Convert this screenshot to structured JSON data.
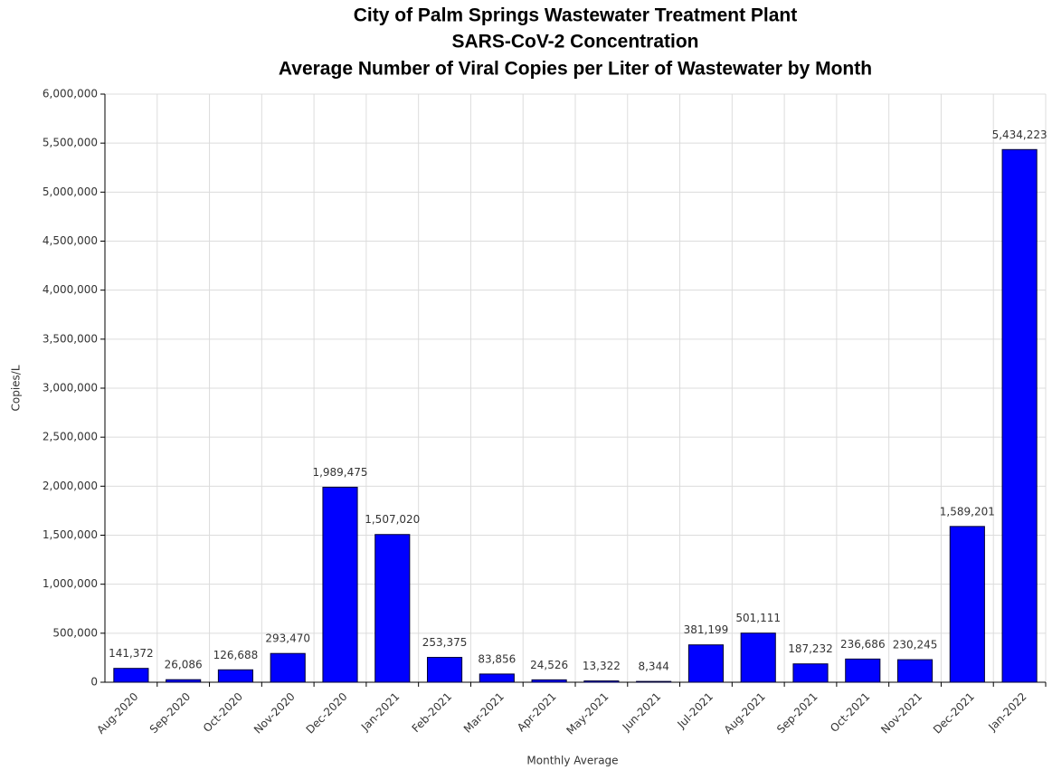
{
  "chart_data": {
    "type": "bar",
    "title": [
      "City of Palm Springs Wastewater Treatment Plant",
      "SARS-CoV-2 Concentration",
      "Average Number of Viral Copies per Liter of Wastewater by Month"
    ],
    "x_label": "Monthly Average",
    "y_label": "Copies/L",
    "categories": [
      "Aug-2020",
      "Sep-2020",
      "Oct-2020",
      "Nov-2020",
      "Dec-2020",
      "Jan-2021",
      "Feb-2021",
      "Mar-2021",
      "Apr-2021",
      "May-2021",
      "Jun-2021",
      "Jul-2021",
      "Aug-2021",
      "Sep-2021",
      "Oct-2021",
      "Nov-2021",
      "Dec-2021",
      "Jan-2022"
    ],
    "values": [
      141372,
      26086,
      126688,
      293470,
      1989475,
      1507020,
      253375,
      83856,
      24526,
      13322,
      8344,
      381199,
      501111,
      187232,
      236686,
      230245,
      1589201,
      5434223
    ],
    "value_labels": [
      "141,372",
      "26,086",
      "126,688",
      "293,470",
      "1,989,475",
      "1,507,020",
      "253,375",
      "83,856",
      "24,526",
      "13,322",
      "8,344",
      "381,199",
      "501,111",
      "187,232",
      "236,686",
      "230,245",
      "1,589,201",
      "5,434,223"
    ],
    "color": "#0000ff",
    "ylim": [
      0,
      6000000
    ],
    "yticks": [
      0,
      {
        "value": 500000,
        "label": "500,000"
      },
      {
        "value": 1000000,
        "label": "1,000,000"
      },
      {
        "value": 1500000,
        "label": "1,500,000"
      },
      {
        "value": 2000000,
        "label": "2,000,000"
      },
      {
        "value": 2500000,
        "label": "2,500,000"
      },
      {
        "value": 3000000,
        "label": "3,000,000"
      },
      {
        "value": 3500000,
        "label": "3,500,000"
      },
      {
        "value": 4000000,
        "label": "4,000,000"
      },
      {
        "value": 4500000,
        "label": "4,500,000"
      },
      {
        "value": 5000000,
        "label": "5,000,000"
      },
      {
        "value": 5500000,
        "label": "5,500,000"
      },
      {
        "value": 6000000,
        "label": "6,000,000"
      }
    ],
    "grid": true
  }
}
